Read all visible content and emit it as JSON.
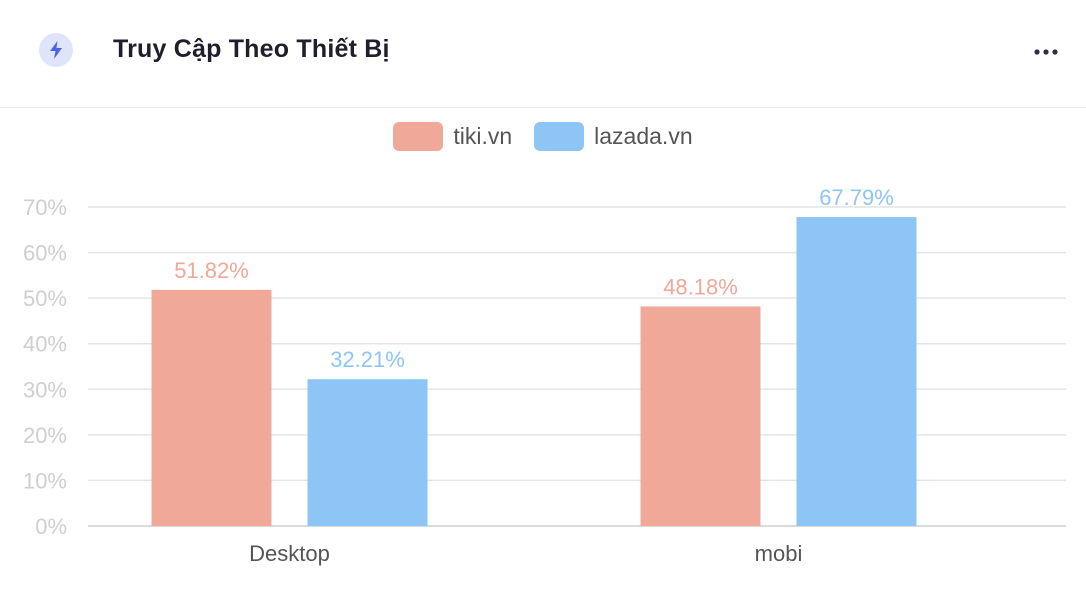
{
  "header": {
    "title": "Truy Cập Theo Thiết Bị",
    "icon": "lightning-icon",
    "menu_icon": "more-horizontal-icon"
  },
  "colors": {
    "tiki": "#f0a898",
    "lazada": "#8ec5f7",
    "accent_icon": "#4a63e8",
    "icon_bg": "#dfe4fb"
  },
  "chart_data": {
    "type": "bar",
    "categories": [
      "Desktop",
      "mobi"
    ],
    "series": [
      {
        "name": "tiki.vn",
        "values": [
          51.82,
          48.18
        ],
        "color": "#f0a898"
      },
      {
        "name": "lazada.vn",
        "values": [
          32.21,
          67.79
        ],
        "color": "#8ec5f7"
      }
    ],
    "data_labels": [
      [
        "51.82%",
        "48.18%"
      ],
      [
        "32.21%",
        "67.79%"
      ]
    ],
    "y_ticks": [
      0,
      10,
      20,
      30,
      40,
      50,
      60,
      70
    ],
    "y_tick_labels": [
      "0%",
      "10%",
      "20%",
      "30%",
      "40%",
      "50%",
      "60%",
      "70%"
    ],
    "ylim": [
      0,
      70
    ],
    "grid": true,
    "legend_position": "top"
  }
}
